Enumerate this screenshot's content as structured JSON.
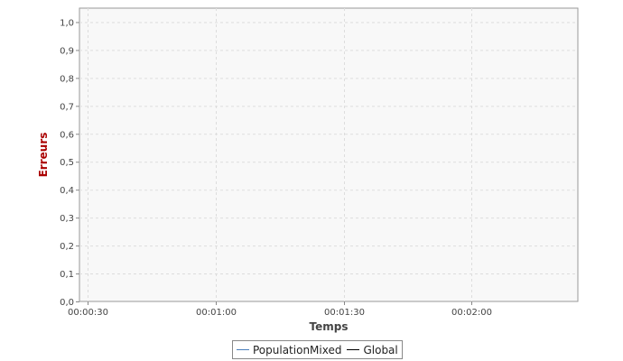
{
  "chart_data": {
    "type": "line",
    "title": "",
    "xlabel": "Temps",
    "ylabel": "Erreurs",
    "x_ticks": [
      "00:00:30",
      "00:01:00",
      "00:01:30",
      "00:02:00"
    ],
    "x_tick_seconds": [
      30,
      60,
      90,
      120
    ],
    "xlim_seconds": [
      28,
      145
    ],
    "y_ticks": [
      "0,0",
      "0,1",
      "0,2",
      "0,3",
      "0,4",
      "0,5",
      "0,6",
      "0,7",
      "0,8",
      "0,9",
      "1,0"
    ],
    "ylim": [
      0,
      1.05
    ],
    "grid": true,
    "legend_position": "bottom",
    "series": [
      {
        "name": "PopulationMixed",
        "color": "#4a7ebb",
        "x": [],
        "values": []
      },
      {
        "name": "Global",
        "color": "#000000",
        "x": [],
        "values": []
      }
    ]
  }
}
